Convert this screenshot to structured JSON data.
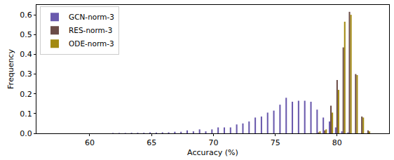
{
  "chart_data": {
    "type": "bar",
    "x_label": "Accuracy (%)",
    "y_label": "Frequency",
    "x": [
      62,
      62.5,
      63,
      63.5,
      64,
      64.5,
      65,
      65.5,
      66,
      66.5,
      67,
      67.5,
      68,
      68.5,
      69,
      69.5,
      70,
      70.5,
      71,
      71.5,
      72,
      72.5,
      73,
      73.5,
      74,
      74.5,
      75,
      75.5,
      76,
      76.5,
      77,
      77.5,
      78,
      78.5,
      79,
      79.5,
      80,
      80.5,
      81,
      81.5,
      82,
      82.5,
      83
    ],
    "series": [
      {
        "name": "GCN-norm-3",
        "color": "#6a5aad",
        "values": [
          0.002,
          0.002,
          0.002,
          0.003,
          0.003,
          0.003,
          0.005,
          0.004,
          0.005,
          0.005,
          0.008,
          0.008,
          0.015,
          0.01,
          0.02,
          0.01,
          0.02,
          0.03,
          0.03,
          0.03,
          0.045,
          0.05,
          0.06,
          0.08,
          0.085,
          0.105,
          0.115,
          0.145,
          0.18,
          0.16,
          0.165,
          0.165,
          0.16,
          0.12,
          0.08,
          0.06,
          0.03,
          0.01,
          0.005,
          0,
          0,
          0,
          0
        ]
      },
      {
        "name": "RES-norm-3",
        "color": "#6b4c47",
        "values": [
          0,
          0,
          0,
          0,
          0,
          0,
          0,
          0,
          0,
          0,
          0,
          0,
          0,
          0,
          0,
          0,
          0,
          0,
          0,
          0,
          0,
          0,
          0,
          0,
          0,
          0,
          0,
          0,
          0,
          0,
          0,
          0,
          0,
          0.005,
          0.015,
          0.14,
          0.27,
          0.435,
          0.615,
          0.3,
          0.085,
          0.015,
          0
        ]
      },
      {
        "name": "ODE-norm-3",
        "color": "#a38a12",
        "values": [
          0,
          0,
          0,
          0,
          0,
          0,
          0,
          0,
          0,
          0,
          0,
          0,
          0,
          0,
          0,
          0,
          0,
          0,
          0,
          0,
          0,
          0,
          0,
          0,
          0,
          0,
          0,
          0,
          0,
          0,
          0,
          0,
          0,
          0.01,
          0.02,
          0.105,
          0.22,
          0.565,
          0.6,
          0.295,
          0.08,
          0.01,
          0
        ]
      }
    ],
    "xlim": [
      55.7,
      84.2
    ],
    "xticks": [
      60,
      65,
      70,
      75,
      80
    ],
    "ylim": [
      0,
      0.65
    ],
    "yticks": [
      {
        "value": 0,
        "label": "0.0"
      },
      0.1,
      0.2,
      0.3,
      0.4,
      0.5,
      0.6
    ],
    "legend": "upper left",
    "grid": false
  }
}
